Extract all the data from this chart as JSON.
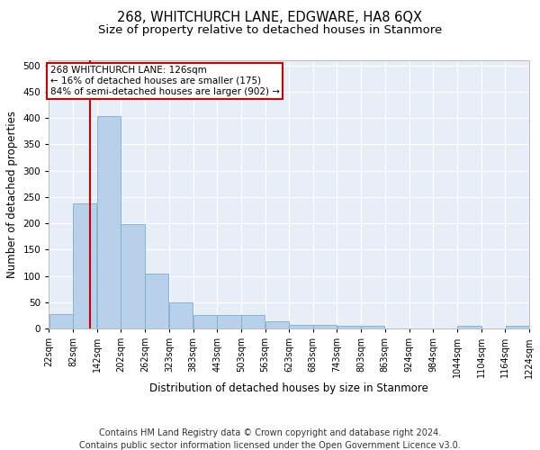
{
  "title": "268, WHITCHURCH LANE, EDGWARE, HA8 6QX",
  "subtitle": "Size of property relative to detached houses in Stanmore",
  "xlabel": "Distribution of detached houses by size in Stanmore",
  "ylabel": "Number of detached properties",
  "bar_color": "#b8d0ea",
  "bar_edge_color": "#7aafd4",
  "background_color": "#e8eef8",
  "grid_color": "white",
  "bin_starts": [
    22,
    82,
    142,
    202,
    262,
    323,
    383,
    443,
    503,
    563,
    623,
    683,
    743,
    803,
    863,
    924,
    984,
    1044,
    1104,
    1164
  ],
  "bin_width": 60,
  "bar_heights": [
    27,
    237,
    403,
    198,
    105,
    49,
    25,
    25,
    25,
    13,
    7,
    7,
    5,
    5,
    0,
    0,
    0,
    5,
    0,
    5
  ],
  "property_size": 126,
  "vline_color": "#cc0000",
  "annotation_line1": "268 WHITCHURCH LANE: 126sqm",
  "annotation_line2": "← 16% of detached houses are smaller (175)",
  "annotation_line3": "84% of semi-detached houses are larger (902) →",
  "annotation_box_color": "#cc0000",
  "annotation_bg": "white",
  "ylim": [
    0,
    510
  ],
  "yticks": [
    0,
    50,
    100,
    150,
    200,
    250,
    300,
    350,
    400,
    450,
    500
  ],
  "tick_labels": [
    "22sqm",
    "82sqm",
    "142sqm",
    "202sqm",
    "262sqm",
    "323sqm",
    "383sqm",
    "443sqm",
    "503sqm",
    "563sqm",
    "623sqm",
    "683sqm",
    "743sqm",
    "803sqm",
    "863sqm",
    "924sqm",
    "984sqm",
    "1044sqm",
    "1104sqm",
    "1164sqm",
    "1224sqm"
  ],
  "footer_line1": "Contains HM Land Registry data © Crown copyright and database right 2024.",
  "footer_line2": "Contains public sector information licensed under the Open Government Licence v3.0.",
  "title_fontsize": 10.5,
  "subtitle_fontsize": 9.5,
  "axis_label_fontsize": 8.5,
  "tick_fontsize": 7,
  "annotation_fontsize": 7.5,
  "footer_fontsize": 7
}
